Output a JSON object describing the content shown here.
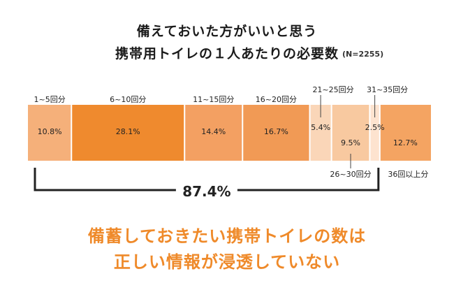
{
  "title_line1": "備えておいた方がいいと思う",
  "title_line2": "携帯用トイレの１人あたりの必要数",
  "sample_size": "(N=2255)",
  "chart_data": {
    "type": "bar",
    "orientation": "horizontal-stacked-100",
    "categories": [
      "1~5回分",
      "6~10回分",
      "11~15回分",
      "16~20回分",
      "21~25回分",
      "26~30回分",
      "31~35回分",
      "36回以上分"
    ],
    "values": [
      10.8,
      28.1,
      14.4,
      16.7,
      5.4,
      9.5,
      2.5,
      12.7
    ],
    "value_labels": [
      "10.8%",
      "28.1%",
      "14.4%",
      "16.7%",
      "5.4%",
      "9.5%",
      "2.5%",
      "12.7%"
    ],
    "colors": [
      "#f5b07a",
      "#ef8a2e",
      "#f3a062",
      "#f19a55",
      "#fad6b8",
      "#f8c9a0",
      "#fde3cf",
      "#f4a462"
    ],
    "bracket_total": "87.4%",
    "unit": "%"
  },
  "caption_line1": "備蓄しておきたい携帯トイレの数は",
  "caption_line2": "正しい情報が浸透していない"
}
